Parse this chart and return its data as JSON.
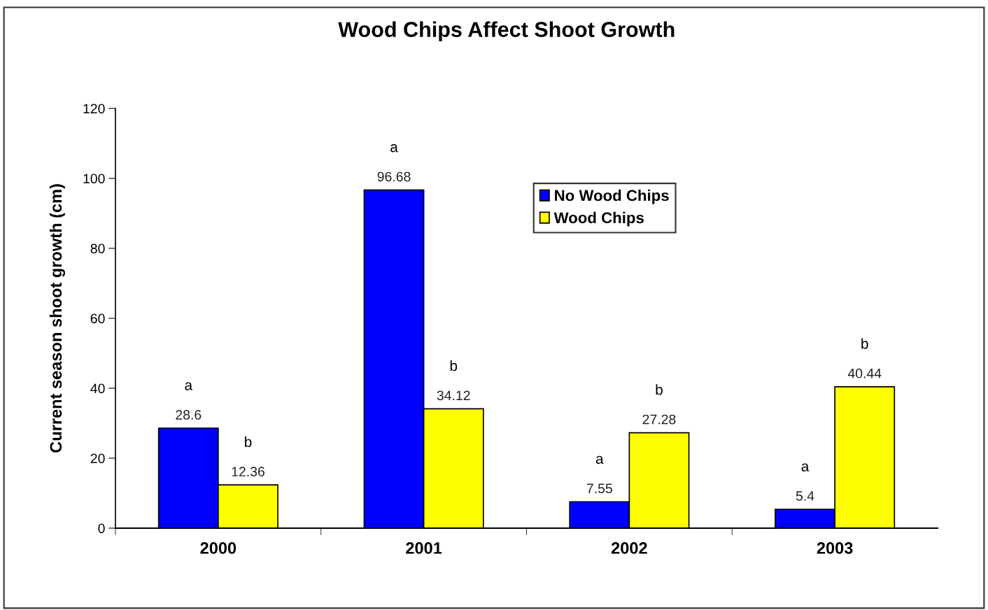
{
  "chart_data": {
    "type": "bar",
    "title": "Wood Chips Affect Shoot Growth",
    "ylabel": "Current season shoot growth (cm)",
    "categories": [
      "2000",
      "2001",
      "2002",
      "2003"
    ],
    "series": [
      {
        "name": "No Wood Chips",
        "color": "#0000ff",
        "values": [
          28.6,
          96.68,
          7.55,
          5.4
        ]
      },
      {
        "name": "Wood Chips",
        "color": "#ffff00",
        "values": [
          12.36,
          34.12,
          27.28,
          40.44
        ]
      }
    ],
    "ylim": [
      0,
      120
    ],
    "yticks": [
      0,
      20,
      40,
      60,
      80,
      100,
      120
    ],
    "grid": false,
    "legend": "top",
    "data_labels": true,
    "annotations": [
      "a",
      "b",
      "a",
      "b",
      "a",
      "b",
      "a",
      "b"
    ]
  }
}
